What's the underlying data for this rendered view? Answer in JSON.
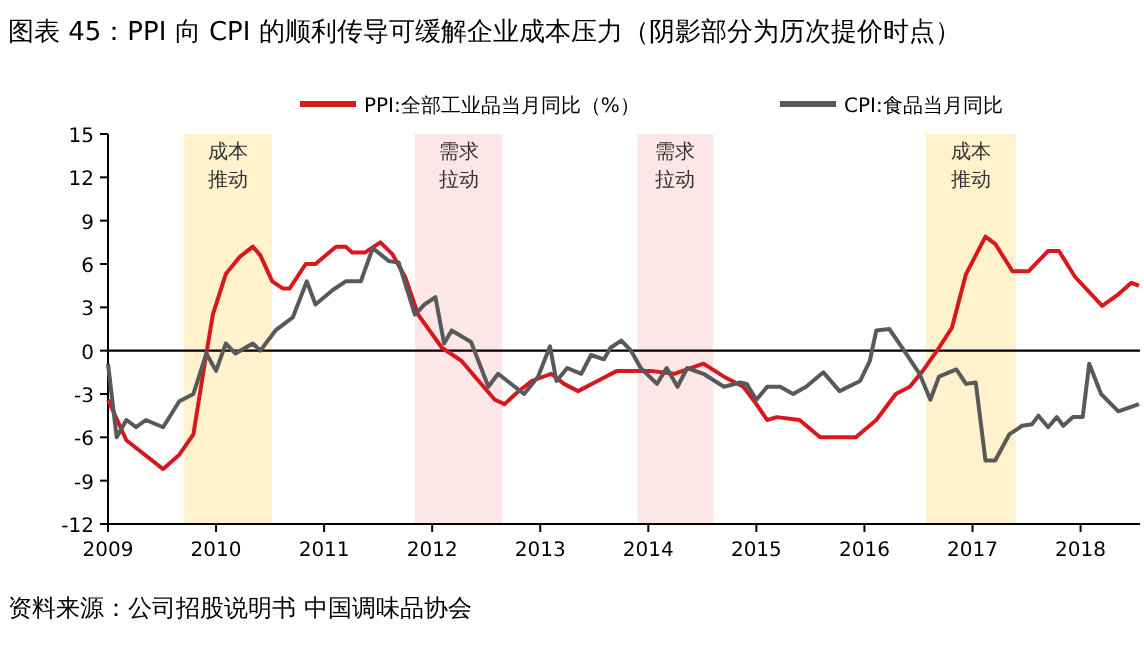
{
  "chart_data": {
    "type": "line",
    "title": "图表 45：PPI 向 CPI 的顺利传导可缓解企业成本压力（阴影部分为历次提价时点）",
    "annotations": [
      "资料来源：公司招股说明书 中国调味品协会"
    ],
    "xlim": [
      2009,
      2018.55
    ],
    "xticks": [
      2009,
      2010,
      2011,
      2012,
      2013,
      2014,
      2015,
      2016,
      2017,
      2018
    ],
    "ylim": [
      -12,
      15
    ],
    "yticks": [
      -12,
      -9,
      -6,
      -3,
      0,
      3,
      6,
      9,
      12,
      15
    ],
    "legend": "top",
    "grid": false,
    "ref_lines": [
      {
        "axis": "y",
        "value": 0,
        "color": "#000000"
      }
    ],
    "bands": [
      {
        "axis": "x",
        "from": 2009.7,
        "to": 2010.52,
        "label": "成本推动",
        "color": "#fff2cc"
      },
      {
        "axis": "x",
        "from": 2011.84,
        "to": 2012.65,
        "label": "需求拉动",
        "color": "#fde6e8"
      },
      {
        "axis": "x",
        "from": 2013.9,
        "to": 2014.6,
        "label": "需求拉动",
        "color": "#fde6e8"
      },
      {
        "axis": "x",
        "from": 2016.57,
        "to": 2017.4,
        "label": "成本推动",
        "color": "#fff2cc"
      }
    ],
    "series": [
      {
        "name": "PPI:全部工业品当月同比（%）",
        "color": "#d7191c",
        "x": [
          2009.0,
          2009.17,
          2009.51,
          2009.66,
          2009.79,
          2009.88,
          2009.97,
          2010.09,
          2010.22,
          2010.34,
          2010.41,
          2010.52,
          2010.62,
          2010.68,
          2010.83,
          2010.92,
          2011.11,
          2011.2,
          2011.26,
          2011.38,
          2011.52,
          2011.63,
          2011.75,
          2011.87,
          2012.09,
          2012.27,
          2012.43,
          2012.58,
          2012.67,
          2012.77,
          2012.92,
          2013.1,
          2013.22,
          2013.35,
          2013.53,
          2013.71,
          2014.02,
          2014.24,
          2014.51,
          2014.7,
          2014.88,
          2015.0,
          2015.1,
          2015.19,
          2015.4,
          2015.59,
          2015.92,
          2016.11,
          2016.29,
          2016.42,
          2016.54,
          2016.69,
          2016.81,
          2016.94,
          2017.12,
          2017.21,
          2017.37,
          2017.52,
          2017.7,
          2017.8,
          2017.95,
          2018.2,
          2018.35,
          2018.47,
          2018.54
        ],
        "values": [
          -3.4,
          -6.2,
          -8.2,
          -7.2,
          -5.8,
          -1.6,
          2.5,
          5.3,
          6.5,
          7.2,
          6.6,
          4.8,
          4.3,
          4.3,
          6.0,
          6.0,
          7.2,
          7.2,
          6.8,
          6.8,
          7.5,
          6.7,
          5.1,
          2.5,
          0.2,
          -0.7,
          -2.1,
          -3.4,
          -3.7,
          -3.0,
          -2.1,
          -1.6,
          -2.3,
          -2.8,
          -2.1,
          -1.4,
          -1.4,
          -1.6,
          -0.9,
          -1.8,
          -2.5,
          -3.7,
          -4.8,
          -4.6,
          -4.8,
          -6.0,
          -6.0,
          -4.8,
          -3.0,
          -2.5,
          -1.4,
          0.2,
          1.6,
          5.3,
          7.9,
          7.4,
          5.5,
          5.5,
          6.9,
          6.9,
          5.1,
          3.1,
          3.9,
          4.7,
          4.5
        ]
      },
      {
        "name": "CPI:食品当月同比",
        "color": "#595959",
        "x": [
          2009.0,
          2009.08,
          2009.17,
          2009.26,
          2009.35,
          2009.51,
          2009.66,
          2009.79,
          2009.91,
          2010.0,
          2010.09,
          2010.18,
          2010.34,
          2010.41,
          2010.55,
          2010.71,
          2010.84,
          2010.92,
          2011.08,
          2011.2,
          2011.34,
          2011.45,
          2011.6,
          2011.69,
          2011.84,
          2011.93,
          2012.03,
          2012.11,
          2012.18,
          2012.36,
          2012.52,
          2012.61,
          2012.85,
          2012.98,
          2013.09,
          2013.15,
          2013.25,
          2013.38,
          2013.47,
          2013.59,
          2013.65,
          2013.75,
          2013.84,
          2013.93,
          2014.08,
          2014.17,
          2014.27,
          2014.36,
          2014.51,
          2014.7,
          2014.85,
          2014.91,
          2015.0,
          2015.1,
          2015.22,
          2015.34,
          2015.46,
          2015.62,
          2015.77,
          2015.96,
          2016.05,
          2016.11,
          2016.23,
          2016.35,
          2016.51,
          2016.61,
          2016.69,
          2016.85,
          2016.94,
          2017.03,
          2017.12,
          2017.21,
          2017.34,
          2017.46,
          2017.55,
          2017.61,
          2017.7,
          2017.78,
          2017.84,
          2017.93,
          2018.02,
          2018.08,
          2018.19,
          2018.35,
          2018.54
        ],
        "values": [
          -0.9,
          -6.0,
          -4.8,
          -5.3,
          -4.8,
          -5.3,
          -3.5,
          -3.0,
          -0.2,
          -1.4,
          0.5,
          -0.2,
          0.5,
          0.0,
          1.4,
          2.3,
          4.8,
          3.2,
          4.2,
          4.8,
          4.8,
          7.1,
          6.2,
          6.1,
          2.5,
          3.2,
          3.7,
          0.5,
          1.4,
          0.6,
          -2.5,
          -1.6,
          -3.0,
          -1.8,
          0.3,
          -2.1,
          -1.2,
          -1.6,
          -0.3,
          -0.6,
          0.2,
          0.7,
          0.0,
          -1.2,
          -2.3,
          -1.2,
          -2.5,
          -1.2,
          -1.6,
          -2.5,
          -2.2,
          -2.3,
          -3.4,
          -2.5,
          -2.5,
          -3.0,
          -2.5,
          -1.5,
          -2.8,
          -2.1,
          -0.7,
          1.4,
          1.5,
          0.2,
          -1.6,
          -3.4,
          -1.8,
          -1.3,
          -2.3,
          -2.2,
          -7.6,
          -7.6,
          -5.8,
          -5.2,
          -5.1,
          -4.5,
          -5.3,
          -4.6,
          -5.2,
          -4.6,
          -4.6,
          -0.9,
          -3.0,
          -4.2,
          -3.7
        ]
      }
    ]
  }
}
